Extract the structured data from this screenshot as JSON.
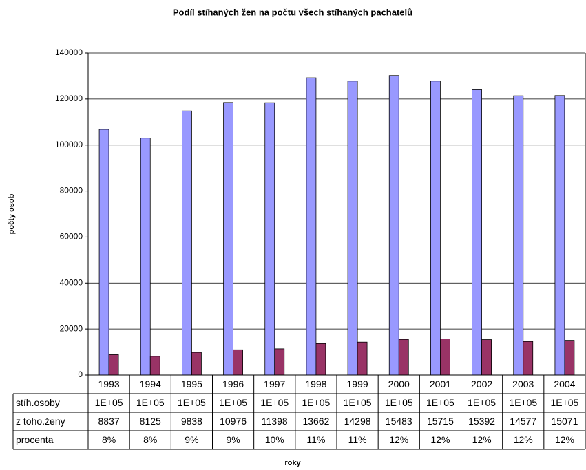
{
  "chart_data": {
    "type": "bar",
    "title": "Podíl stíhaných žen na počtu všech stíhaných pachatelů",
    "xlabel": "roky",
    "ylabel": "počty osob",
    "categories": [
      "1993",
      "1994",
      "1995",
      "1996",
      "1997",
      "1998",
      "1999",
      "2000",
      "2001",
      "2002",
      "2003",
      "2004"
    ],
    "series": [
      {
        "name": "stíh.osoby",
        "color": "#9999ff",
        "values": [
          106800,
          103000,
          114800,
          118500,
          118400,
          129200,
          127800,
          130200,
          127800,
          124000,
          121400,
          121500
        ],
        "value_labels": [
          "1E+05",
          "1E+05",
          "1E+05",
          "1E+05",
          "1E+05",
          "1E+05",
          "1E+05",
          "1E+05",
          "1E+05",
          "1E+05",
          "1E+05",
          "1E+05"
        ]
      },
      {
        "name": "z toho.ženy",
        "color": "#993366",
        "values": [
          8837,
          8125,
          9838,
          10976,
          11398,
          13662,
          14298,
          15483,
          15715,
          15392,
          14577,
          15071
        ]
      },
      {
        "name": "procenta",
        "color": "#ffffcc",
        "values": [
          8,
          8,
          9,
          9,
          10,
          11,
          11,
          12,
          12,
          12,
          12,
          12
        ],
        "value_labels": [
          "8%",
          "8%",
          "9%",
          "9%",
          "10%",
          "11%",
          "11%",
          "12%",
          "12%",
          "12%",
          "12%",
          "12%"
        ]
      }
    ],
    "ylim": [
      0,
      140000
    ],
    "yticks": [
      0,
      20000,
      40000,
      60000,
      80000,
      100000,
      120000,
      140000
    ],
    "grid": true
  }
}
